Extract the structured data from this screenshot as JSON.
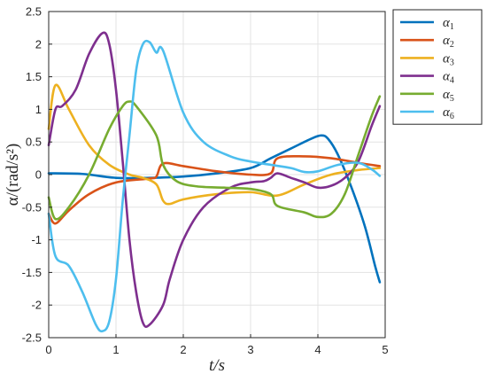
{
  "chart_data": {
    "type": "line",
    "xlabel": "t/s",
    "ylabel": "α/(rad/s²)",
    "xlim": [
      0,
      5
    ],
    "ylim": [
      -2.5,
      2.5
    ],
    "xticks": [
      "0",
      "1",
      "2",
      "3",
      "4",
      "5"
    ],
    "yticks": [
      "2.5",
      "2",
      "1.5",
      "1",
      "0.5",
      "0",
      "-0.5",
      "-1",
      "-1.5",
      "-2",
      "-2.5"
    ],
    "grid": true,
    "legend_position": "outside top-right",
    "series": [
      {
        "name": "α1",
        "color": "#0072BD",
        "x": [
          0,
          0.5,
          1,
          1.5,
          2,
          2.5,
          3,
          3.3,
          3.6,
          3.9,
          4.05,
          4.15,
          4.3,
          4.5,
          4.7,
          4.85,
          4.92
        ],
        "y": [
          0.02,
          0.01,
          -0.05,
          -0.05,
          -0.03,
          0.02,
          0.1,
          0.25,
          0.4,
          0.55,
          0.6,
          0.55,
          0.3,
          -0.2,
          -0.8,
          -1.4,
          -1.65
        ]
      },
      {
        "name": "α2",
        "color": "#D95319",
        "x": [
          0,
          0.1,
          0.3,
          0.6,
          1,
          1.5,
          1.6,
          1.7,
          2,
          2.5,
          3,
          3.3,
          3.4,
          3.8,
          4.2,
          4.6,
          4.92
        ],
        "y": [
          -0.6,
          -0.75,
          -0.55,
          -0.3,
          -0.12,
          -0.06,
          -0.03,
          0.17,
          0.13,
          0.05,
          0.0,
          0.02,
          0.25,
          0.28,
          0.25,
          0.18,
          0.13
        ]
      },
      {
        "name": "α3",
        "color": "#EDB120",
        "x": [
          0,
          0.1,
          0.3,
          0.6,
          0.9,
          1.2,
          1.4,
          1.6,
          1.7,
          1.8,
          2,
          2.5,
          3,
          3.4,
          3.8,
          4.2,
          4.6,
          4.92
        ],
        "y": [
          0.7,
          1.37,
          1.0,
          0.45,
          0.15,
          0.0,
          -0.05,
          -0.15,
          -0.4,
          -0.45,
          -0.38,
          -0.3,
          -0.27,
          -0.32,
          -0.15,
          0.0,
          0.07,
          0.1
        ]
      },
      {
        "name": "α4",
        "color": "#7E2F8E",
        "x": [
          0,
          0.1,
          0.2,
          0.4,
          0.6,
          0.8,
          0.9,
          1.0,
          1.1,
          1.2,
          1.3,
          1.4,
          1.5,
          1.7,
          1.8,
          2.0,
          2.3,
          2.7,
          3.0,
          3.2,
          3.3,
          3.4,
          3.6,
          3.8,
          4.0,
          4.2,
          4.4,
          4.6,
          4.8,
          4.92
        ],
        "y": [
          0.45,
          1.0,
          1.05,
          1.3,
          1.85,
          2.17,
          2.0,
          1.3,
          0.2,
          -1.0,
          -1.8,
          -2.27,
          -2.3,
          -2.0,
          -1.6,
          -1.0,
          -0.5,
          -0.2,
          -0.12,
          -0.1,
          -0.05,
          0.02,
          -0.05,
          -0.12,
          -0.2,
          -0.17,
          -0.05,
          0.2,
          0.75,
          1.05
        ]
      },
      {
        "name": "α5",
        "color": "#77AC30",
        "x": [
          0,
          0.1,
          0.3,
          0.6,
          0.9,
          1.1,
          1.2,
          1.3,
          1.6,
          1.7,
          1.9,
          2.2,
          2.6,
          3.0,
          3.3,
          3.4,
          3.8,
          4.0,
          4.2,
          4.4,
          4.6,
          4.8,
          4.92
        ],
        "y": [
          -0.35,
          -0.68,
          -0.5,
          0.0,
          0.7,
          1.05,
          1.12,
          1.05,
          0.6,
          0.15,
          -0.1,
          -0.18,
          -0.2,
          -0.22,
          -0.3,
          -0.48,
          -0.58,
          -0.65,
          -0.6,
          -0.3,
          0.3,
          0.9,
          1.2
        ]
      },
      {
        "name": "α6",
        "color": "#4DBEEE",
        "x": [
          0,
          0.1,
          0.3,
          0.5,
          0.7,
          0.8,
          0.9,
          1.0,
          1.1,
          1.2,
          1.3,
          1.4,
          1.5,
          1.6,
          1.7,
          2.0,
          2.3,
          2.7,
          3.0,
          3.3,
          3.6,
          3.8,
          4.0,
          4.3,
          4.6,
          4.8,
          4.92
        ],
        "y": [
          -0.6,
          -1.25,
          -1.4,
          -1.8,
          -2.3,
          -2.4,
          -2.25,
          -1.6,
          -0.4,
          0.6,
          1.6,
          2.0,
          2.03,
          1.87,
          1.9,
          0.95,
          0.5,
          0.28,
          0.2,
          0.15,
          0.1,
          0.04,
          0.05,
          0.15,
          0.18,
          0.08,
          -0.02
        ]
      }
    ]
  }
}
